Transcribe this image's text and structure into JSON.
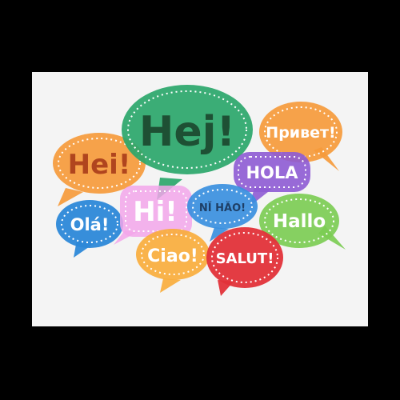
{
  "colors": {
    "background": "#000000",
    "card": "#f4f4f4",
    "outline": "#ffffff"
  },
  "greetings": [
    {
      "id": "hej",
      "text": "Hej!",
      "fill": "#2aa66a",
      "text_color": "#1e5034"
    },
    {
      "id": "privet",
      "text": "Привет!",
      "fill": "#f59a3b",
      "text_color": "#ffffff"
    },
    {
      "id": "hei",
      "text": "Hei!",
      "fill": "#f59a3b",
      "text_color": "#b0451e"
    },
    {
      "id": "hola",
      "text": "HOLA",
      "fill": "#8e5bd4",
      "text_color": "#ffffff"
    },
    {
      "id": "hi",
      "text": "Hi!",
      "fill": "#f2a6ea",
      "text_color": "#ffffff"
    },
    {
      "id": "nihao",
      "text": "NǏ HǍO!",
      "fill": "#3a8fde",
      "text_color": "#1e3f66"
    },
    {
      "id": "ola",
      "text": "Olá!",
      "fill": "#2c88d8",
      "text_color": "#ffffff"
    },
    {
      "id": "hallo",
      "text": "Hallo",
      "fill": "#7ccc54",
      "text_color": "#ffffff"
    },
    {
      "id": "ciao",
      "text": "Ciao!",
      "fill": "#f9ad3c",
      "text_color": "#ffffff"
    },
    {
      "id": "salut",
      "text": "SALUT!",
      "fill": "#e23139",
      "text_color": "#ffffff"
    }
  ]
}
